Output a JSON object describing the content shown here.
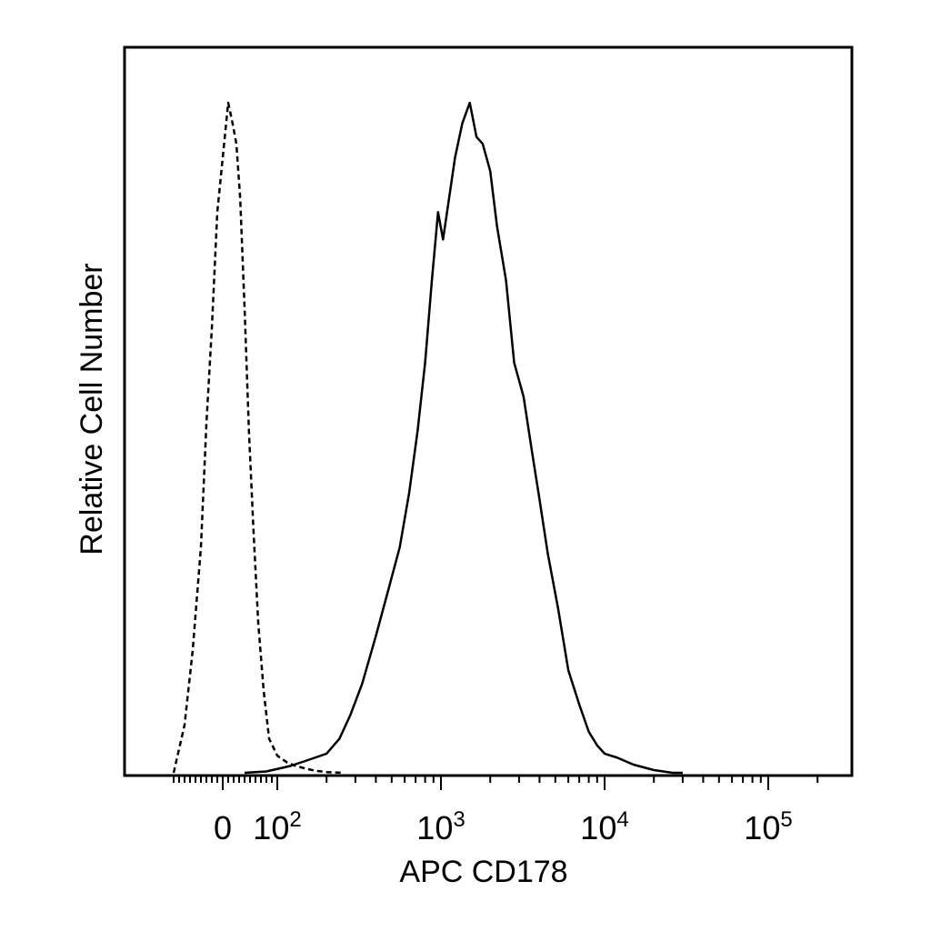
{
  "chart_data": {
    "type": "area",
    "title": "",
    "xlabel": "APC CD178",
    "ylabel": "Relative Cell Number",
    "x_scale": "biexponential",
    "xlim": [
      -150,
      250000
    ],
    "ylim": [
      0,
      1.0
    ],
    "grid": false,
    "legend": "none",
    "x_tick_labels": [
      {
        "value": 0,
        "base": "0",
        "exp": ""
      },
      {
        "value": 100,
        "base": "10",
        "exp": "2"
      },
      {
        "value": 1000,
        "base": "10",
        "exp": "3"
      },
      {
        "value": 10000,
        "base": "10",
        "exp": "4"
      },
      {
        "value": 100000,
        "base": "10",
        "exp": "5"
      }
    ],
    "series": [
      {
        "style": "dashed",
        "color": "#000000",
        "x": [
          -90,
          -70,
          -55,
          -40,
          -30,
          -20,
          -10,
          0,
          10,
          18,
          25,
          32,
          40,
          48,
          56,
          65,
          75,
          85,
          100,
          115,
          130,
          150,
          170,
          200,
          250
        ],
        "y": [
          0.0,
          0.07,
          0.18,
          0.33,
          0.51,
          0.65,
          0.82,
          0.9,
          0.98,
          0.95,
          0.92,
          0.84,
          0.68,
          0.5,
          0.36,
          0.22,
          0.12,
          0.05,
          0.025,
          0.015,
          0.01,
          0.006,
          0.003,
          0.001,
          0.0
        ]
      },
      {
        "style": "solid",
        "color": "#000000",
        "x": [
          40,
          80,
          120,
          160,
          200,
          240,
          280,
          330,
          400,
          480,
          560,
          640,
          720,
          800,
          880,
          960,
          1030,
          1120,
          1220,
          1350,
          1500,
          1650,
          1800,
          2000,
          2200,
          2500,
          2800,
          3200,
          3600,
          4000,
          4500,
          5200,
          6000,
          7000,
          8000,
          9000,
          10000,
          12000,
          15000,
          20000,
          26000,
          30000
        ],
        "y": [
          0.0,
          0.002,
          0.01,
          0.02,
          0.028,
          0.05,
          0.085,
          0.13,
          0.2,
          0.27,
          0.33,
          0.41,
          0.5,
          0.6,
          0.72,
          0.82,
          0.78,
          0.84,
          0.9,
          0.95,
          0.98,
          0.93,
          0.92,
          0.88,
          0.8,
          0.72,
          0.6,
          0.55,
          0.47,
          0.4,
          0.32,
          0.24,
          0.15,
          0.1,
          0.06,
          0.04,
          0.028,
          0.022,
          0.012,
          0.004,
          0.0,
          0.0
        ]
      }
    ]
  }
}
